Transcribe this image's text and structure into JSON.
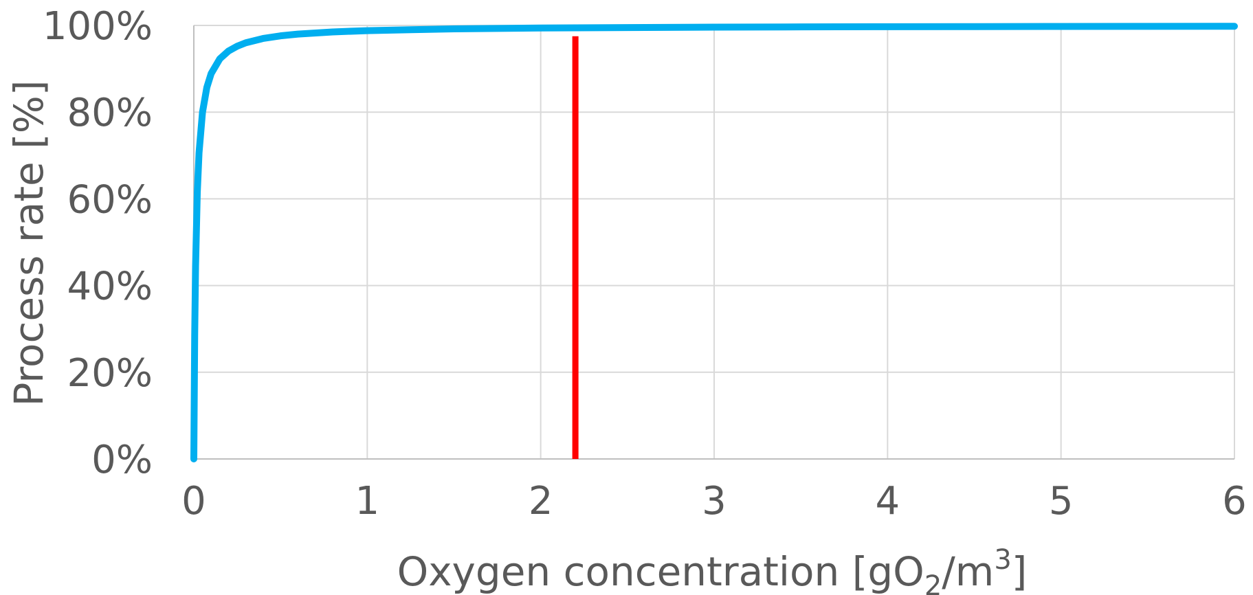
{
  "chart_data": {
    "type": "line",
    "x_axis": {
      "label_prefix": "Oxygen concentration [gO",
      "label_sub": "2",
      "label_mid": "/m",
      "label_sup": "3",
      "label_suffix": "]",
      "range": [
        0,
        6
      ],
      "ticks": [
        "0",
        "1",
        "2",
        "3",
        "4",
        "5",
        "6"
      ]
    },
    "y_axis": {
      "label": "Process rate [%]",
      "range": [
        0,
        100
      ],
      "ticks": [
        "0%",
        "20%",
        "40%",
        "60%",
        "80%",
        "100%"
      ]
    },
    "grid": true,
    "series": [
      {
        "color": "#00AEEF",
        "x": [
          0,
          0.005,
          0.01,
          0.02,
          0.03,
          0.05,
          0.075,
          0.1,
          0.15,
          0.2,
          0.25,
          0.3,
          0.4,
          0.5,
          0.6,
          0.8,
          1.0,
          1.25,
          1.5,
          2.0,
          2.5,
          3.0,
          3.5,
          4.0,
          4.5,
          5.0,
          5.5,
          6.0
        ],
        "y": [
          0,
          28.6,
          44.4,
          61.5,
          70.6,
          80.0,
          85.7,
          88.9,
          92.3,
          94.1,
          95.2,
          96.0,
          97.0,
          97.6,
          98.0,
          98.5,
          98.8,
          99.0,
          99.2,
          99.4,
          99.5,
          99.6,
          99.66,
          99.7,
          99.73,
          99.76,
          99.78,
          99.8
        ]
      }
    ],
    "annotations": [
      {
        "type": "vertical-line",
        "x": 2.2,
        "y_from": 0,
        "y_to": 97.5,
        "color": "#FF0000"
      }
    ]
  }
}
